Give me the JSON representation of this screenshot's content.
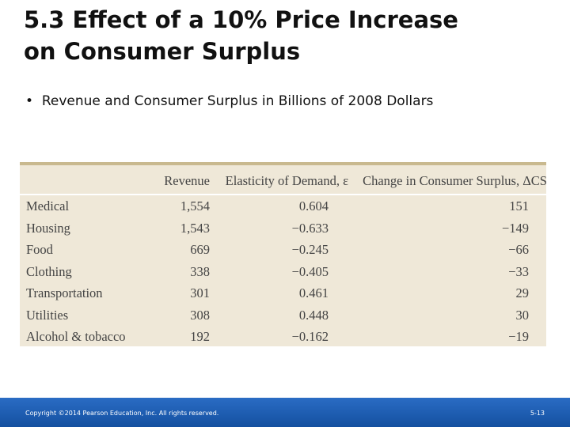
{
  "header": {
    "title_lines": [
      "5.3  Effect of a 10% Price Increase",
      "on Consumer Surplus"
    ]
  },
  "bullet": "Revenue and Consumer Surplus in Billions of 2008 Dollars",
  "table": {
    "columns": [
      "",
      "Revenue",
      "Elasticity of Demand, ε",
      "Change in Consumer Surplus, ΔCS"
    ],
    "rows": [
      [
        "Medical",
        "1,554",
        "0.604",
        "151"
      ],
      [
        "Housing",
        "1,543",
        "−0.633",
        "−149"
      ],
      [
        "Food",
        "669",
        "−0.245",
        "−66"
      ],
      [
        "Clothing",
        "338",
        "−0.405",
        "−33"
      ],
      [
        "Transportation",
        "301",
        "0.461",
        "29"
      ],
      [
        "Utilities",
        "308",
        "0.448",
        "30"
      ],
      [
        "Alcohol & tobacco",
        "192",
        "−0.162",
        "−19"
      ]
    ]
  },
  "footer": {
    "copyright": "Copyright ©2014 Pearson Education, Inc. All rights reserved.",
    "page": "5-13"
  }
}
